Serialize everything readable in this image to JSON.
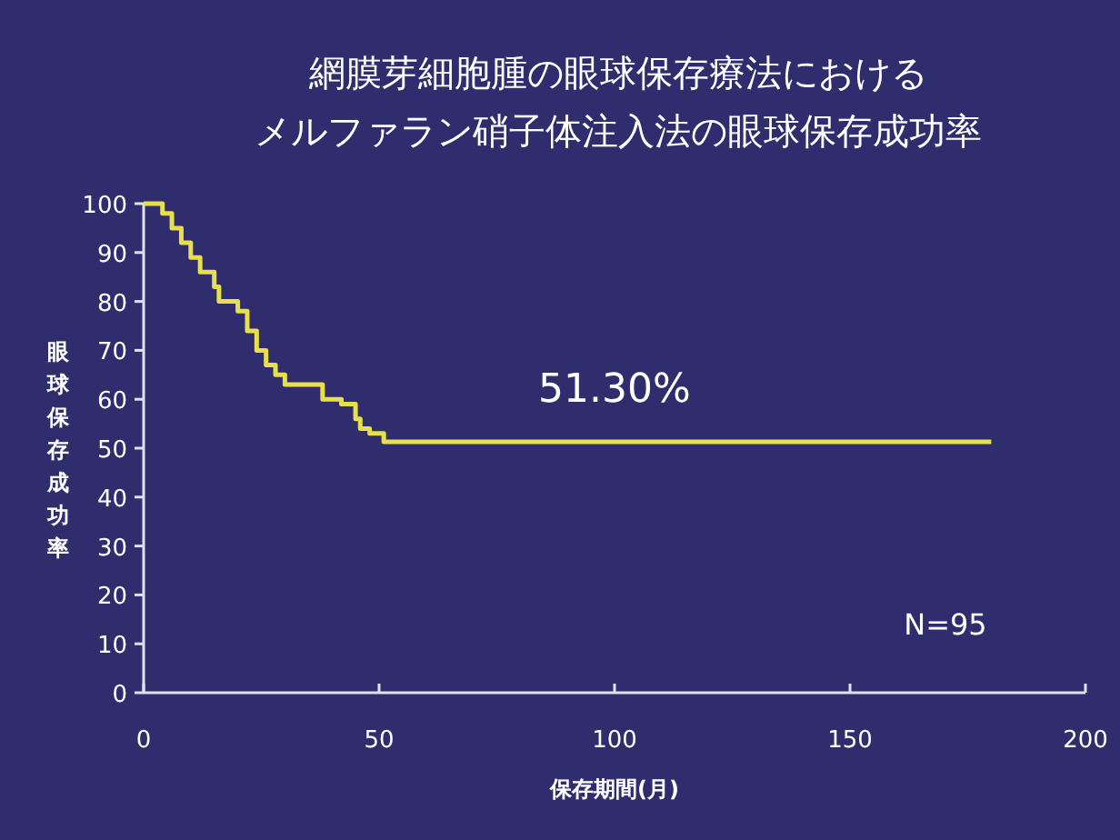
{
  "chart_data": {
    "type": "step",
    "title": "網膜芽細胞腫の眼球保存療法における",
    "subtitle": "メルファラン硝子体注入法の眼球保存成功率",
    "xlabel": "保存期間(月)",
    "ylabel": "眼球保存成功率",
    "x": [
      0,
      4,
      6,
      8,
      10,
      12,
      15,
      16,
      20,
      22,
      24,
      26,
      28,
      30,
      38,
      42,
      45,
      46,
      48,
      51,
      180
    ],
    "series": [
      {
        "color": "#e8e04a",
        "values": [
          100,
          98,
          95,
          92,
          89,
          86,
          83,
          80,
          78,
          74,
          70,
          67,
          65,
          63,
          60,
          59,
          56,
          54,
          53,
          51.3,
          51.3
        ]
      }
    ],
    "annotations": [
      {
        "text": "51.30%",
        "x": 100,
        "y": 51.3
      },
      "N=95"
    ],
    "xlim": [
      0,
      200
    ],
    "ylim": [
      0,
      100
    ],
    "xticks": [
      0,
      50,
      100,
      150,
      200
    ],
    "yticks": [
      0,
      10,
      20,
      30,
      40,
      50,
      60,
      70,
      80,
      90,
      100
    ],
    "grid": false
  }
}
